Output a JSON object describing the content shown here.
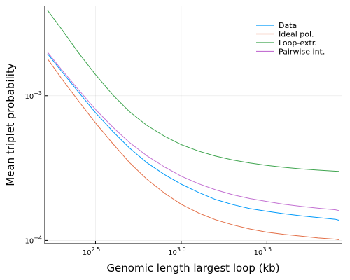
{
  "chart_data": {
    "type": "line",
    "xlabel": "Genomic length largest loop (kb)",
    "ylabel": "Mean triplet probability",
    "x_scale": "log10",
    "y_scale": "log10",
    "xlim": [
      160,
      8700
    ],
    "ylim": [
      9.5e-05,
      0.0042
    ],
    "x_ticks": [
      {
        "value": 316.23,
        "base": "10",
        "exp": "2.5"
      },
      {
        "value": 1000,
        "base": "10",
        "exp": "3.0"
      },
      {
        "value": 3162.3,
        "base": "10",
        "exp": "3.5"
      }
    ],
    "y_ticks": [
      {
        "value": 0.0001,
        "base": "10",
        "exp": "−4"
      },
      {
        "value": 0.001,
        "base": "10",
        "exp": "−3"
      }
    ],
    "grid": true,
    "legend_position": "top-right",
    "series": [
      {
        "name": "Data",
        "color": "#009AFA",
        "x": [
          166,
          200,
          250,
          316,
          400,
          500,
          630,
          800,
          1000,
          1260,
          1585,
          2000,
          2510,
          3160,
          3980,
          5010,
          6310,
          7940,
          8300
        ],
        "y": [
          0.00195,
          0.00148,
          0.00107,
          0.000765,
          0.000565,
          0.000435,
          0.000345,
          0.000285,
          0.000245,
          0.000215,
          0.000192,
          0.000177,
          0.000166,
          0.000159,
          0.000153,
          0.000148,
          0.000144,
          0.00014,
          0.000138
        ]
      },
      {
        "name": "Ideal pol.",
        "color": "#E36F47",
        "x": [
          166,
          200,
          250,
          316,
          400,
          500,
          630,
          800,
          1000,
          1260,
          1585,
          2000,
          2510,
          3160,
          3980,
          5010,
          6310,
          7940,
          8300
        ],
        "y": [
          0.0018,
          0.00132,
          0.00093,
          0.00065,
          0.000465,
          0.000345,
          0.000265,
          0.000212,
          0.000178,
          0.000155,
          0.000139,
          0.000128,
          0.00012,
          0.000114,
          0.00011,
          0.000107,
          0.000104,
          0.000102,
          0.000101
        ]
      },
      {
        "name": "Loop-extr.",
        "color": "#3EA44E",
        "x": [
          166,
          200,
          250,
          316,
          400,
          500,
          630,
          800,
          1000,
          1260,
          1585,
          2000,
          2510,
          3160,
          3980,
          5010,
          6310,
          7940,
          8300
        ],
        "y": [
          0.0039,
          0.0029,
          0.002,
          0.0014,
          0.00101,
          0.000775,
          0.000625,
          0.000525,
          0.00046,
          0.000415,
          0.000383,
          0.00036,
          0.000343,
          0.00033,
          0.00032,
          0.000312,
          0.000306,
          0.000301,
          0.0003
        ]
      },
      {
        "name": "Pairwise int.",
        "color": "#C371D2",
        "x": [
          166,
          200,
          250,
          316,
          400,
          500,
          630,
          800,
          1000,
          1260,
          1585,
          2000,
          2510,
          3160,
          3980,
          5010,
          6310,
          7940,
          8300
        ],
        "y": [
          0.002,
          0.00152,
          0.00111,
          0.000805,
          0.000605,
          0.000475,
          0.000385,
          0.000322,
          0.000278,
          0.000247,
          0.000224,
          0.000207,
          0.000195,
          0.000186,
          0.000178,
          0.000172,
          0.000167,
          0.000163,
          0.000161
        ]
      }
    ]
  }
}
